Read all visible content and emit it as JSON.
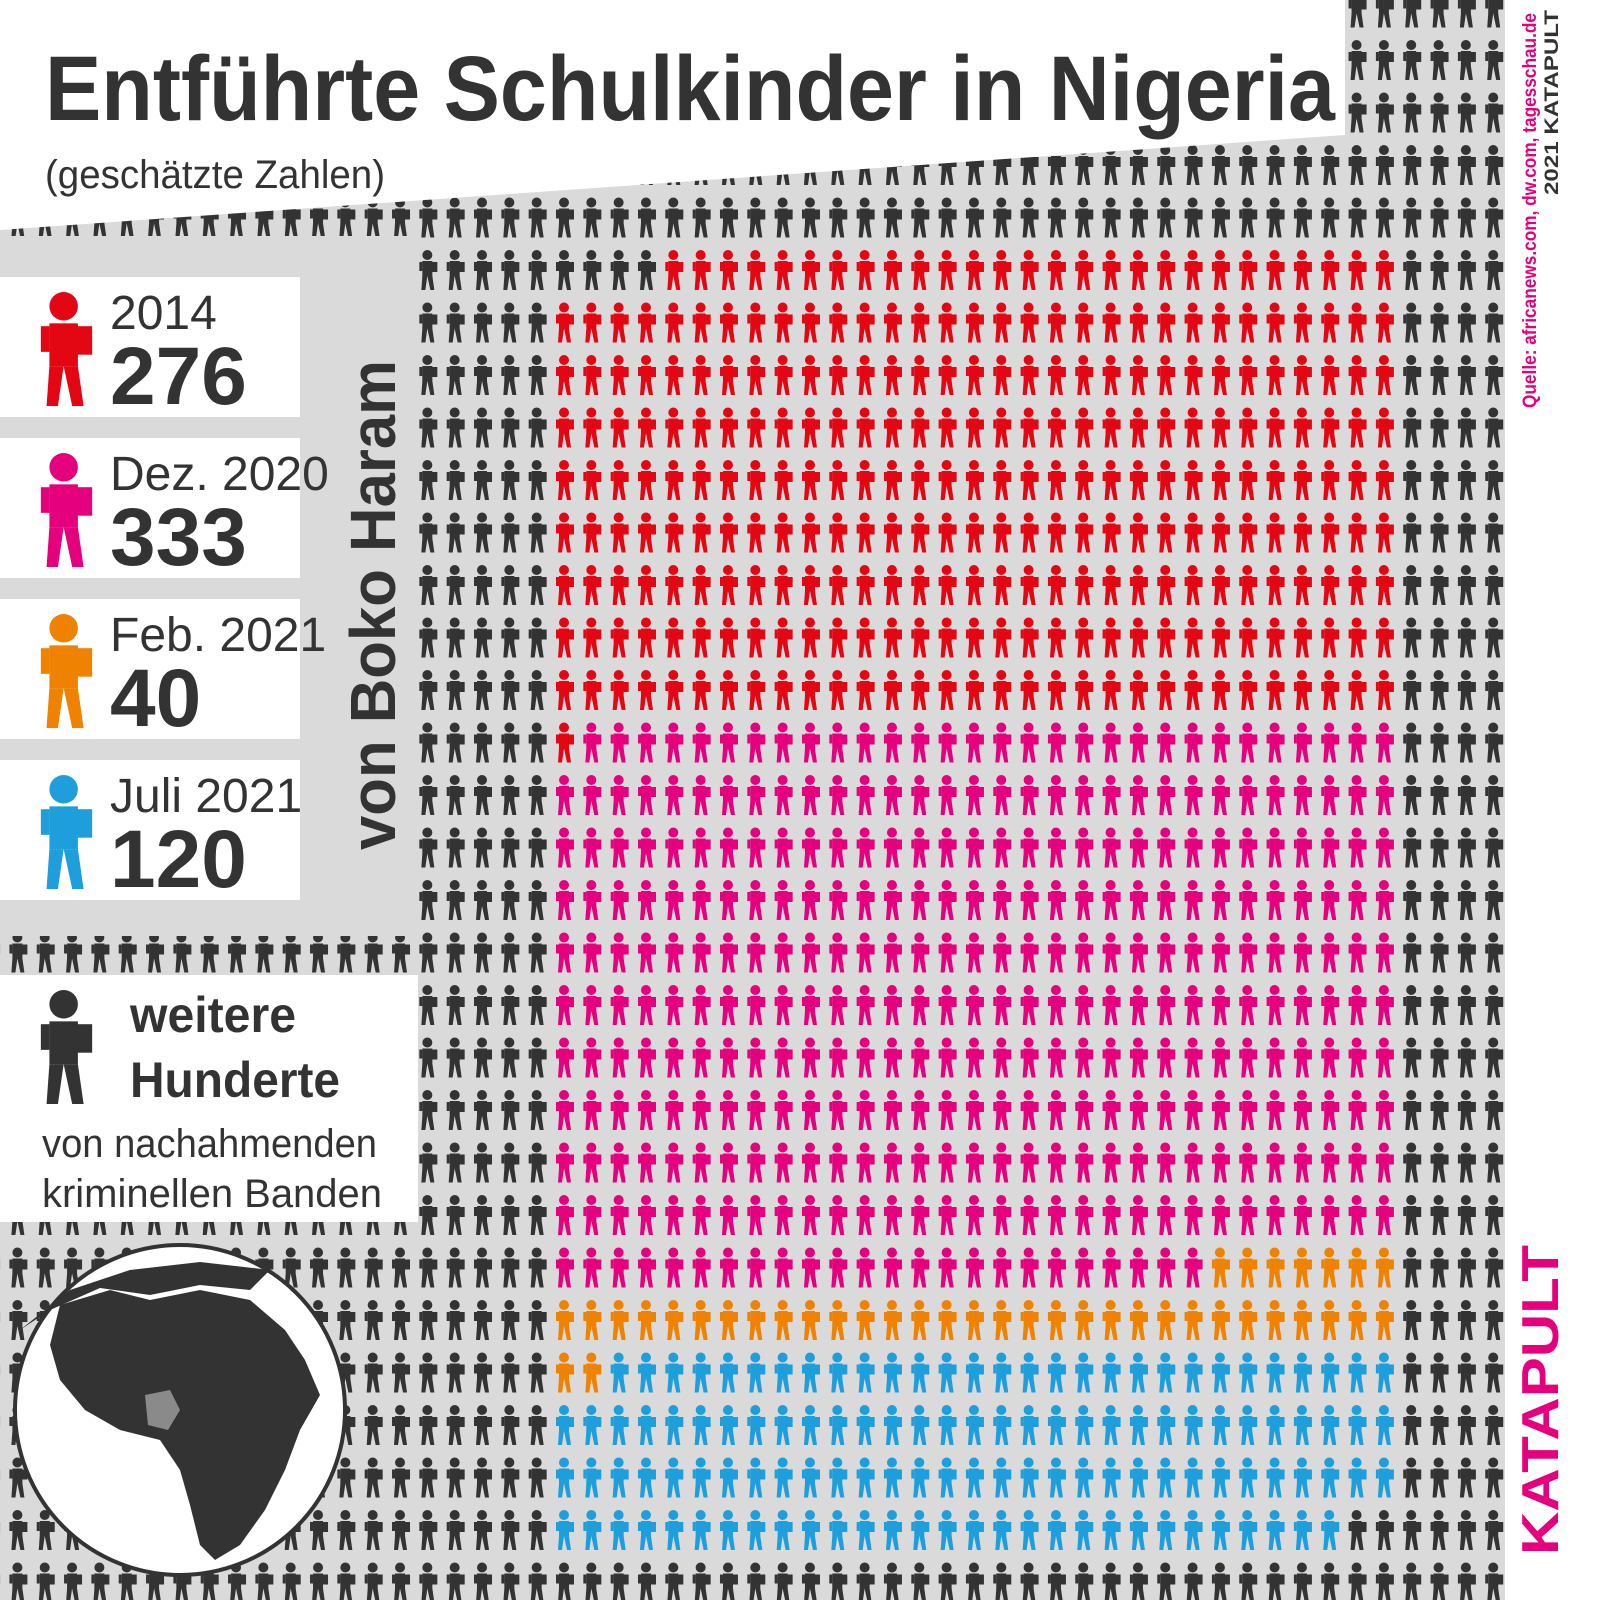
{
  "title": "Entführte Schulkinder in Nigeria",
  "subtitle": "(geschätzte Zahlen)",
  "chart_data": {
    "type": "pictogram",
    "categories": [
      "2014",
      "Dez. 2020",
      "Feb. 2021",
      "Juli 2021"
    ],
    "values": [
      276,
      333,
      40,
      120
    ],
    "colors": [
      "#e30613",
      "#e5007e",
      "#ef8200",
      "#1e9fdb"
    ],
    "group_label": "von Boko Haram"
  },
  "other": {
    "label": [
      "weitere",
      "Hunderte"
    ],
    "note": [
      "von nachahmenden",
      "kriminellen Banden"
    ]
  },
  "source": "Quelle: africanews.com, dw.com, tagesschau.de",
  "credit": "2021 KATAPULT",
  "logo": "KATAPULT"
}
